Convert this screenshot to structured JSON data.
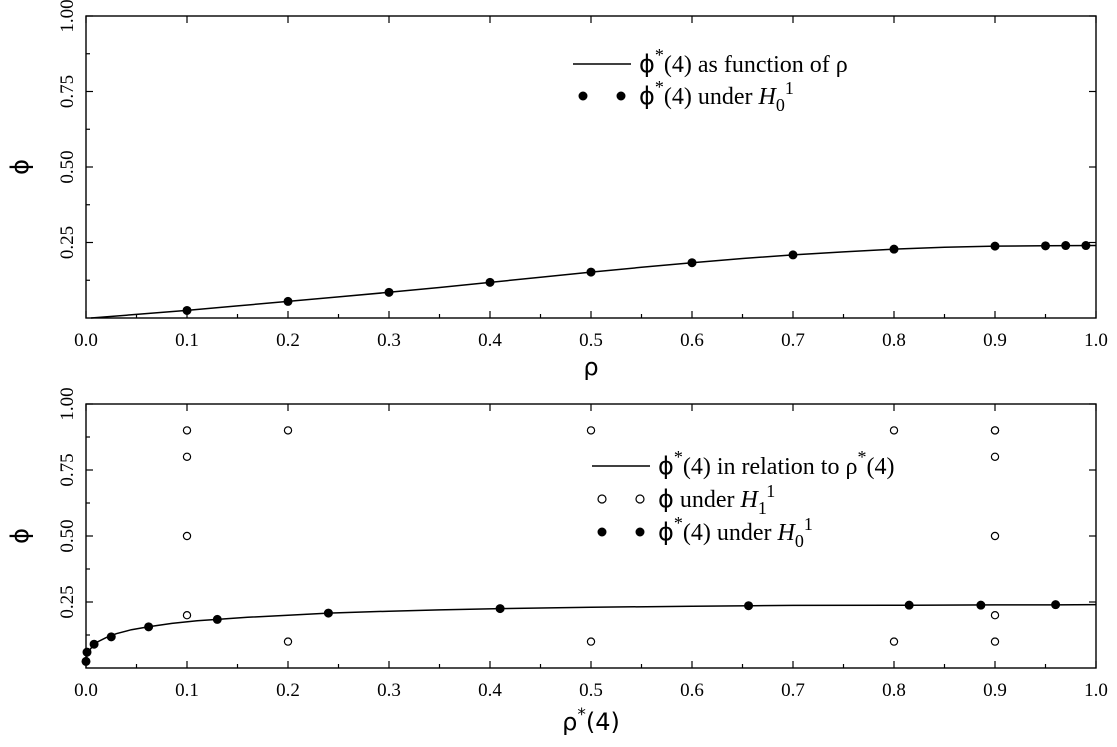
{
  "chart_data": [
    {
      "type": "line",
      "xlabel": "ρ",
      "ylabel": "ϕ",
      "xlim": [
        0.0,
        1.0
      ],
      "ylim": [
        0.0,
        1.0
      ],
      "xticks": [
        "0.0",
        "0.1",
        "0.2",
        "0.3",
        "0.4",
        "0.5",
        "0.6",
        "0.7",
        "0.8",
        "0.9",
        "1.0"
      ],
      "yticks": [
        "0.25",
        "0.50",
        "0.75",
        "1.00"
      ],
      "legend_position": "top-right",
      "series": [
        {
          "name": "ϕ*(4) as function of ρ",
          "kind": "line",
          "x": [
            0.005,
            0.05,
            0.1,
            0.15,
            0.2,
            0.25,
            0.3,
            0.35,
            0.4,
            0.45,
            0.5,
            0.55,
            0.6,
            0.65,
            0.7,
            0.75,
            0.8,
            0.85,
            0.9,
            0.95,
            1.0
          ],
          "y": [
            0.0,
            0.012,
            0.025,
            0.04,
            0.055,
            0.07,
            0.085,
            0.101,
            0.118,
            0.135,
            0.152,
            0.168,
            0.183,
            0.197,
            0.209,
            0.219,
            0.228,
            0.234,
            0.238,
            0.239,
            0.24
          ]
        },
        {
          "name": "ϕ*(4) under H01",
          "kind": "scatter-filled",
          "x": [
            0.1,
            0.2,
            0.3,
            0.4,
            0.5,
            0.6,
            0.7,
            0.8,
            0.9,
            0.95,
            0.97,
            0.99
          ],
          "y": [
            0.025,
            0.055,
            0.085,
            0.118,
            0.152,
            0.183,
            0.209,
            0.228,
            0.238,
            0.239,
            0.24,
            0.24
          ]
        }
      ]
    },
    {
      "type": "scatter",
      "xlabel": "ρ*(4)",
      "ylabel": "ϕ",
      "xlim": [
        0.0,
        1.0
      ],
      "ylim": [
        0.0,
        1.0
      ],
      "xticks": [
        "0.0",
        "0.1",
        "0.2",
        "0.3",
        "0.4",
        "0.5",
        "0.6",
        "0.7",
        "0.8",
        "0.9",
        "1.0"
      ],
      "yticks": [
        "0.25",
        "0.50",
        "0.75",
        "1.00"
      ],
      "legend_position": "center-right",
      "series": [
        {
          "name": "ϕ*(4) in relation to ρ*(4)",
          "kind": "line",
          "x": [
            0.0,
            0.001,
            0.003,
            0.007,
            0.012,
            0.02,
            0.03,
            0.045,
            0.062,
            0.085,
            0.11,
            0.13,
            0.16,
            0.2,
            0.24,
            0.3,
            0.35,
            0.41,
            0.5,
            0.6,
            0.66,
            0.7,
            0.8,
            0.815,
            0.9,
            0.96,
            1.0
          ],
          "y": [
            0.025,
            0.045,
            0.065,
            0.085,
            0.1,
            0.115,
            0.13,
            0.145,
            0.156,
            0.169,
            0.179,
            0.184,
            0.192,
            0.2,
            0.208,
            0.215,
            0.22,
            0.225,
            0.23,
            0.234,
            0.236,
            0.237,
            0.238,
            0.238,
            0.239,
            0.239,
            0.24
          ]
        },
        {
          "name": "ϕ under H11",
          "kind": "scatter-open",
          "x": [
            0.1,
            0.1,
            0.1,
            0.1,
            0.2,
            0.2,
            0.5,
            0.5,
            0.8,
            0.8,
            0.9,
            0.9,
            0.9,
            0.9,
            0.9,
            0.9
          ],
          "y": [
            0.9,
            0.8,
            0.5,
            0.2,
            0.9,
            0.1,
            0.9,
            0.1,
            0.9,
            0.1,
            0.9,
            0.9,
            0.8,
            0.5,
            0.2,
            0.1
          ]
        },
        {
          "name": "ϕ*(4) under H01",
          "kind": "scatter-filled",
          "x": [
            0.0,
            0.001,
            0.008,
            0.025,
            0.062,
            0.13,
            0.24,
            0.41,
            0.656,
            0.815,
            0.886,
            0.96
          ],
          "y": [
            0.025,
            0.06,
            0.09,
            0.118,
            0.156,
            0.184,
            0.208,
            0.225,
            0.236,
            0.238,
            0.238,
            0.24
          ]
        }
      ]
    }
  ],
  "legends": [
    [
      {
        "symbol": "line",
        "prefix": "ϕ",
        "sup": "*",
        "text": "(4) as function of ρ"
      },
      {
        "symbol": "filled",
        "prefix": "ϕ",
        "sup": "*",
        "text": "(4) under ",
        "italic": "H",
        "sub": "0",
        "sup2": "1"
      }
    ],
    [
      {
        "symbol": "line",
        "prefix": "ϕ",
        "sup": "*",
        "text": "(4) in relation to ρ",
        "sup3": "*",
        "text3": "(4)"
      },
      {
        "symbol": "open",
        "prefix": "ϕ",
        "text": " under ",
        "italic": "H",
        "sub": "1",
        "sup2": "1"
      },
      {
        "symbol": "filled",
        "prefix": "ϕ",
        "sup": "*",
        "text": "(4) under ",
        "italic": "H",
        "sub": "0",
        "sup2": "1"
      }
    ]
  ],
  "xlabel_parts": [
    {
      "main": "ρ",
      "sup": "",
      "rest": ""
    },
    {
      "main": "ρ",
      "sup": "*",
      "rest": "(4)"
    }
  ]
}
